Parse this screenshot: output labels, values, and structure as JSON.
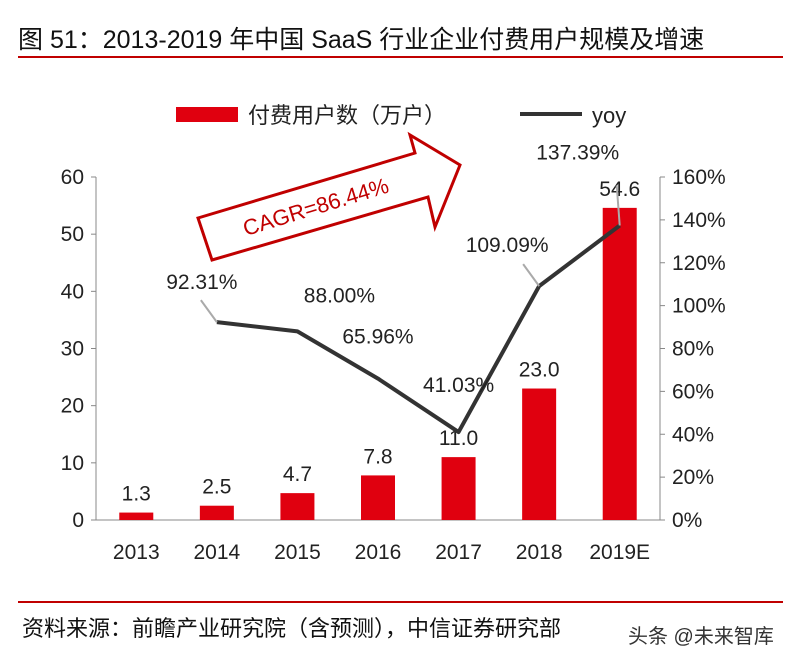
{
  "header": {
    "title": "图 51：2013-2019 年中国 SaaS 行业企业付费用户规模及增速"
  },
  "footer": {
    "source": "资料来源：前瞻产业研究院（含预测），中信证券研究部",
    "watermark": "头条 @未来智库"
  },
  "colors": {
    "bar": "#e0000f",
    "line": "#333333",
    "rule": "#c00000",
    "arrow": "#c00000"
  },
  "chart_data": {
    "type": "bar+line",
    "categories": [
      "2013",
      "2014",
      "2015",
      "2016",
      "2017",
      "2018",
      "2019E"
    ],
    "series": [
      {
        "name": "付费用户数（万户）",
        "type": "bar",
        "axis": "left",
        "values": [
          1.3,
          2.5,
          4.7,
          7.8,
          11.0,
          23.0,
          54.6
        ],
        "labels": [
          "1.3",
          "2.5",
          "4.7",
          "7.8",
          "11.0",
          "23.0",
          "54.6"
        ]
      },
      {
        "name": "yoy",
        "type": "line",
        "axis": "right",
        "values": [
          null,
          92.31,
          88.0,
          65.96,
          41.03,
          109.09,
          137.39
        ],
        "labels": [
          "",
          "92.31%",
          "88.00%",
          "65.96%",
          "41.03%",
          "109.09%",
          "137.39%"
        ]
      }
    ],
    "left_axis": {
      "ylim": [
        0,
        60
      ],
      "ticks": [
        "0",
        "10",
        "20",
        "30",
        "40",
        "50",
        "60"
      ]
    },
    "right_axis": {
      "ylim": [
        0,
        160
      ],
      "ticks": [
        "0%",
        "20%",
        "40%",
        "60%",
        "80%",
        "100%",
        "120%",
        "140%",
        "160%"
      ]
    },
    "annotation": "CAGR=86.44%",
    "legend": "top",
    "grid": false
  }
}
